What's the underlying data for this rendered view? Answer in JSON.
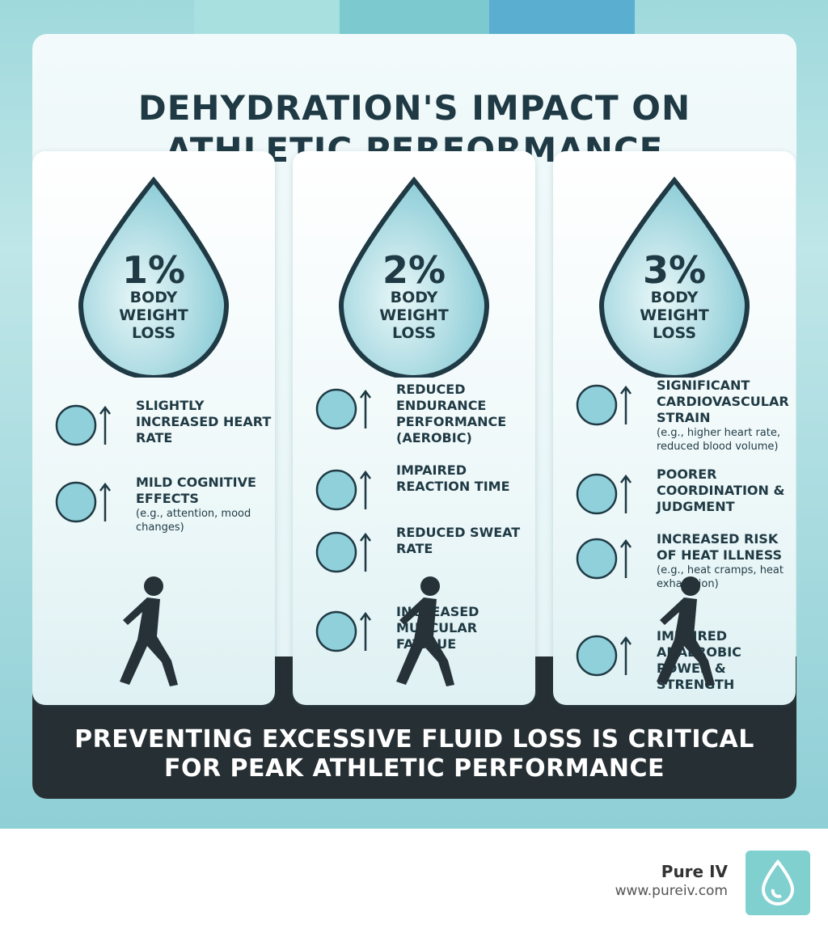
{
  "header": {
    "title": [
      "DEHYDRATION'S IMPACT ON",
      "ATHLETIC PERFORMANCE"
    ]
  },
  "columns": [
    {
      "percent": "1%",
      "label": "BODY WEIGHT LOSS",
      "effects": [
        {
          "text": "SLIGHTLY INCREASED HEART RATE"
        },
        {
          "text": "MILD COGNITIVE EFFECTS",
          "note": "(e.g., attention, mood changes)"
        }
      ]
    },
    {
      "percent": "2%",
      "label": "BODY WEIGHT LOSS",
      "effects": [
        {
          "text": "REDUCED ENDURANCE PERFORMANCE (AEROBIC)"
        },
        {
          "text": "IMPAIRED REACTION TIME"
        },
        {
          "text": "REDUCED SWEAT RATE"
        },
        {
          "text": "INCREASED MUSCULAR FATIGUE"
        }
      ]
    },
    {
      "percent": "3%",
      "label": "BODY WEIGHT LOSS",
      "effects": [
        {
          "text": "SIGNIFICANT CARDIOVASCULAR STRAIN",
          "note": "(e.g., higher heart rate, reduced blood volume)"
        },
        {
          "text": "POORER COORDINATION & JUDGMENT"
        },
        {
          "text": "INCREASED RISK OF HEAT ILLNESS",
          "note": "(e.g., heat cramps, heat exhaustion)"
        },
        {
          "text": "IMPAIRED ANAEROBIC POWER & STRENGTH"
        }
      ]
    }
  ],
  "footer": [
    "PREVENTING EXCESSIVE FLUID LOSS IS CRITICAL",
    "FOR PEAK ATHLETIC PERFORMANCE"
  ],
  "brand": {
    "name": "Pure IV",
    "url": "www.pureiv.com"
  }
}
